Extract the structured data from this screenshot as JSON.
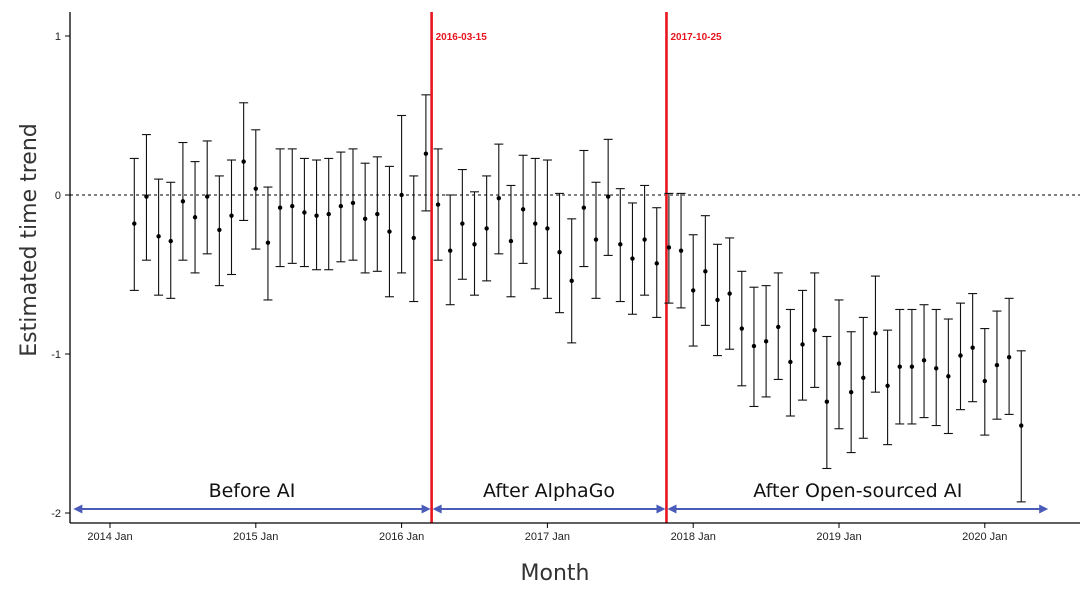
{
  "chart_data": {
    "type": "errorbar",
    "xlabel": "Month",
    "ylabel": "Estimated time trend",
    "ylim": [
      -2,
      1.15
    ],
    "yticks": [
      1,
      0,
      -1,
      -2
    ],
    "xticks": [
      "2014 Jan",
      "2015 Jan",
      "2016 Jan",
      "2017 Jan",
      "2018 Jan",
      "2019 Jan",
      "2020 Jan"
    ],
    "reference_line": 0,
    "events": [
      {
        "date": "2016-03-15",
        "label": "2016-03-15",
        "month_index": 26.47
      },
      {
        "date": "2017-10-25",
        "label": "2017-10-25",
        "month_index": 45.8
      }
    ],
    "periods": [
      {
        "label": "Before AI",
        "start": -3.1,
        "end": 26.47
      },
      {
        "label": "After AlphaGo",
        "start": 26.47,
        "end": 45.8
      },
      {
        "label": "After Open-sourced AI",
        "start": 45.8,
        "end": 77.3
      }
    ],
    "series": [
      {
        "name": "Estimated time trend",
        "x_start_month": 2,
        "x_start_label": "2014 Mar",
        "points": [
          {
            "est": -0.18,
            "lo": -0.6,
            "hi": 0.23
          },
          {
            "est": -0.01,
            "lo": -0.41,
            "hi": 0.38
          },
          {
            "est": -0.26,
            "lo": -0.63,
            "hi": 0.1
          },
          {
            "est": -0.29,
            "lo": -0.65,
            "hi": 0.08
          },
          {
            "est": -0.04,
            "lo": -0.41,
            "hi": 0.33
          },
          {
            "est": -0.14,
            "lo": -0.49,
            "hi": 0.21
          },
          {
            "est": -0.01,
            "lo": -0.37,
            "hi": 0.34
          },
          {
            "est": -0.22,
            "lo": -0.57,
            "hi": 0.12
          },
          {
            "est": -0.13,
            "lo": -0.5,
            "hi": 0.22
          },
          {
            "est": 0.21,
            "lo": -0.16,
            "hi": 0.58
          },
          {
            "est": 0.04,
            "lo": -0.34,
            "hi": 0.41
          },
          {
            "est": -0.3,
            "lo": -0.66,
            "hi": 0.05
          },
          {
            "est": -0.08,
            "lo": -0.45,
            "hi": 0.29
          },
          {
            "est": -0.07,
            "lo": -0.43,
            "hi": 0.29
          },
          {
            "est": -0.11,
            "lo": -0.45,
            "hi": 0.23
          },
          {
            "est": -0.13,
            "lo": -0.47,
            "hi": 0.22
          },
          {
            "est": -0.12,
            "lo": -0.47,
            "hi": 0.23
          },
          {
            "est": -0.07,
            "lo": -0.42,
            "hi": 0.27
          },
          {
            "est": -0.05,
            "lo": -0.41,
            "hi": 0.29
          },
          {
            "est": -0.15,
            "lo": -0.49,
            "hi": 0.2
          },
          {
            "est": -0.12,
            "lo": -0.48,
            "hi": 0.24
          },
          {
            "est": -0.23,
            "lo": -0.64,
            "hi": 0.18
          },
          {
            "est": 0.0,
            "lo": -0.49,
            "hi": 0.5
          },
          {
            "est": -0.27,
            "lo": -0.67,
            "hi": 0.12
          },
          {
            "est": 0.26,
            "lo": -0.1,
            "hi": 0.63
          },
          {
            "est": -0.06,
            "lo": -0.41,
            "hi": 0.29
          },
          {
            "est": -0.35,
            "lo": -0.69,
            "hi": 0.0
          },
          {
            "est": -0.18,
            "lo": -0.53,
            "hi": 0.16
          },
          {
            "est": -0.31,
            "lo": -0.63,
            "hi": 0.02
          },
          {
            "est": -0.21,
            "lo": -0.54,
            "hi": 0.12
          },
          {
            "est": -0.02,
            "lo": -0.37,
            "hi": 0.32
          },
          {
            "est": -0.29,
            "lo": -0.64,
            "hi": 0.06
          },
          {
            "est": -0.09,
            "lo": -0.43,
            "hi": 0.25
          },
          {
            "est": -0.18,
            "lo": -0.59,
            "hi": 0.23
          },
          {
            "est": -0.21,
            "lo": -0.65,
            "hi": 0.22
          },
          {
            "est": -0.36,
            "lo": -0.74,
            "hi": 0.01
          },
          {
            "est": -0.54,
            "lo": -0.93,
            "hi": -0.15
          },
          {
            "est": -0.08,
            "lo": -0.45,
            "hi": 0.28
          },
          {
            "est": -0.28,
            "lo": -0.65,
            "hi": 0.08
          },
          {
            "est": -0.01,
            "lo": -0.38,
            "hi": 0.35
          },
          {
            "est": -0.31,
            "lo": -0.67,
            "hi": 0.04
          },
          {
            "est": -0.4,
            "lo": -0.75,
            "hi": -0.05
          },
          {
            "est": -0.28,
            "lo": -0.63,
            "hi": 0.06
          },
          {
            "est": -0.43,
            "lo": -0.77,
            "hi": -0.08
          },
          {
            "est": -0.33,
            "lo": -0.68,
            "hi": 0.01
          },
          {
            "est": -0.35,
            "lo": -0.71,
            "hi": 0.01
          },
          {
            "est": -0.6,
            "lo": -0.95,
            "hi": -0.25
          },
          {
            "est": -0.48,
            "lo": -0.82,
            "hi": -0.13
          },
          {
            "est": -0.66,
            "lo": -1.01,
            "hi": -0.31
          },
          {
            "est": -0.62,
            "lo": -0.97,
            "hi": -0.27
          },
          {
            "est": -0.84,
            "lo": -1.2,
            "hi": -0.48
          },
          {
            "est": -0.95,
            "lo": -1.33,
            "hi": -0.58
          },
          {
            "est": -0.92,
            "lo": -1.27,
            "hi": -0.57
          },
          {
            "est": -0.83,
            "lo": -1.16,
            "hi": -0.49
          },
          {
            "est": -1.05,
            "lo": -1.39,
            "hi": -0.72
          },
          {
            "est": -0.94,
            "lo": -1.29,
            "hi": -0.6
          },
          {
            "est": -0.85,
            "lo": -1.21,
            "hi": -0.49
          },
          {
            "est": -1.3,
            "lo": -1.72,
            "hi": -0.89
          },
          {
            "est": -1.06,
            "lo": -1.47,
            "hi": -0.66
          },
          {
            "est": -1.24,
            "lo": -1.62,
            "hi": -0.86
          },
          {
            "est": -1.15,
            "lo": -1.53,
            "hi": -0.77
          },
          {
            "est": -0.87,
            "lo": -1.24,
            "hi": -0.51
          },
          {
            "est": -1.2,
            "lo": -1.57,
            "hi": -0.85
          },
          {
            "est": -1.08,
            "lo": -1.44,
            "hi": -0.72
          },
          {
            "est": -1.08,
            "lo": -1.44,
            "hi": -0.72
          },
          {
            "est": -1.04,
            "lo": -1.4,
            "hi": -0.69
          },
          {
            "est": -1.09,
            "lo": -1.45,
            "hi": -0.72
          },
          {
            "est": -1.14,
            "lo": -1.5,
            "hi": -0.78
          },
          {
            "est": -1.01,
            "lo": -1.35,
            "hi": -0.68
          },
          {
            "est": -0.96,
            "lo": -1.3,
            "hi": -0.62
          },
          {
            "est": -1.17,
            "lo": -1.51,
            "hi": -0.84
          },
          {
            "est": -1.07,
            "lo": -1.41,
            "hi": -0.73
          },
          {
            "est": -1.02,
            "lo": -1.38,
            "hi": -0.65
          },
          {
            "est": -1.45,
            "lo": -1.93,
            "hi": -0.98
          }
        ]
      }
    ]
  }
}
